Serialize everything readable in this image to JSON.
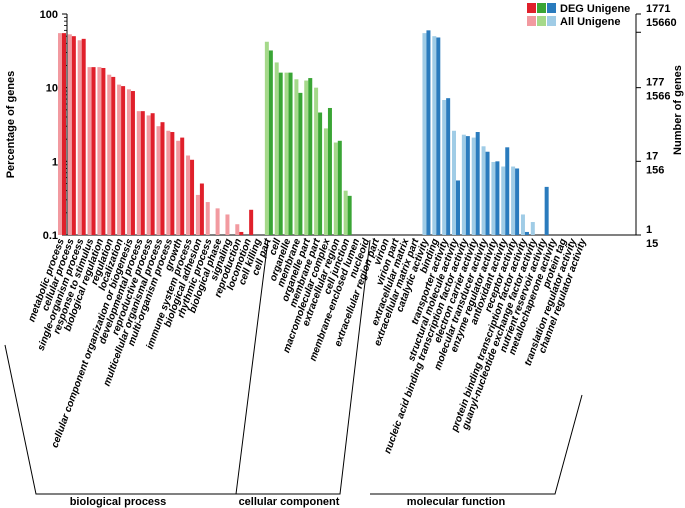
{
  "chart_data": {
    "type": "bar",
    "ylabel_left": "Percentage of genes",
    "ylabel_right": "Number of genes",
    "yscale": "log",
    "ylim": [
      0.1,
      100
    ],
    "left_ticks": [
      "100",
      "10",
      "1",
      "0.1"
    ],
    "right_ticks_deg": [
      "1771",
      "177",
      "17",
      "1"
    ],
    "right_ticks_all": [
      "15660",
      "1566",
      "156",
      "15"
    ],
    "legend": {
      "position": "top-right",
      "deg_label": "DEG Unigene",
      "all_label": "All Unigene"
    },
    "groups": [
      {
        "name": "biological process",
        "deg_color": "#e0202b",
        "all_color": "#f29aa0"
      },
      {
        "name": "cellular component",
        "deg_color": "#3aa535",
        "all_color": "#a5d98a"
      },
      {
        "name": "molecular function",
        "deg_color": "#2a7bbd",
        "all_color": "#a0cce6"
      }
    ],
    "categories": [
      {
        "label": "metabolic process",
        "group": 0,
        "all": 55,
        "deg": 55
      },
      {
        "label": "cellular process",
        "group": 0,
        "all": 53,
        "deg": 50
      },
      {
        "label": "single-organism process",
        "group": 0,
        "all": 44,
        "deg": 46
      },
      {
        "label": "response to stimulus",
        "group": 0,
        "all": 19,
        "deg": 19
      },
      {
        "label": "biological regulation",
        "group": 0,
        "all": 19,
        "deg": 18.5
      },
      {
        "label": "regulation",
        "group": 0,
        "all": 15,
        "deg": 14
      },
      {
        "label": "localization",
        "group": 0,
        "all": 11,
        "deg": 10.5
      },
      {
        "label": "cellular component organization or biogenesis",
        "group": 0,
        "all": 9.5,
        "deg": 9
      },
      {
        "label": "developmental process",
        "group": 0,
        "all": 4.8,
        "deg": 4.8
      },
      {
        "label": "reproductive process",
        "group": 0,
        "all": 4.2,
        "deg": 4.5
      },
      {
        "label": "multicellular organismal process",
        "group": 0,
        "all": 3.0,
        "deg": 3.4
      },
      {
        "label": "multi-organism process",
        "group": 0,
        "all": 2.6,
        "deg": 2.5
      },
      {
        "label": "growth",
        "group": 0,
        "all": 1.9,
        "deg": 2.1
      },
      {
        "label": "immune system process",
        "group": 0,
        "all": 1.2,
        "deg": 1.05
      },
      {
        "label": "biological adhesion",
        "group": 0,
        "all": 0.35,
        "deg": 0.5
      },
      {
        "label": "rhythmic process",
        "group": 0,
        "all": 0.28,
        "deg": null
      },
      {
        "label": "biological phase",
        "group": 0,
        "all": 0.23,
        "deg": null
      },
      {
        "label": "signaling",
        "group": 0,
        "all": 0.19,
        "deg": null
      },
      {
        "label": "reproduction",
        "group": 0,
        "all": 0.14,
        "deg": 0.11
      },
      {
        "label": "locomotion",
        "group": 0,
        "all": null,
        "deg": 0.22
      },
      {
        "label": "cell killing",
        "group": 0,
        "all": null,
        "deg": null
      },
      {
        "label": "cell part",
        "group": 1,
        "all": 42,
        "deg": 32
      },
      {
        "label": "cell",
        "group": 1,
        "all": 22,
        "deg": 16
      },
      {
        "label": "organelle",
        "group": 1,
        "all": 16,
        "deg": 16
      },
      {
        "label": "membrane",
        "group": 1,
        "all": 13,
        "deg": 8.5
      },
      {
        "label": "organelle part",
        "group": 1,
        "all": 12.5,
        "deg": 13.5
      },
      {
        "label": "membrane part",
        "group": 1,
        "all": 10,
        "deg": 4.6
      },
      {
        "label": "macromolecular complex",
        "group": 1,
        "all": 2.8,
        "deg": 5.3
      },
      {
        "label": "extracellular region",
        "group": 1,
        "all": 1.8,
        "deg": 1.9
      },
      {
        "label": "cell junction",
        "group": 1,
        "all": 0.4,
        "deg": 0.34
      },
      {
        "label": "membrane-enclosed lumen",
        "group": 1,
        "all": null,
        "deg": null
      },
      {
        "label": "nucleoid",
        "group": 1,
        "all": null,
        "deg": null
      },
      {
        "label": "extracellular region part",
        "group": 1,
        "all": null,
        "deg": null
      },
      {
        "label": "virion",
        "group": 1,
        "all": null,
        "deg": null
      },
      {
        "label": "virion part",
        "group": 1,
        "all": null,
        "deg": null
      },
      {
        "label": "extracellular matrix",
        "group": 1,
        "all": null,
        "deg": null
      },
      {
        "label": "extracellular matrix part",
        "group": 1,
        "all": null,
        "deg": null
      },
      {
        "label": "catalytic activity",
        "group": 2,
        "all": 55,
        "deg": 60
      },
      {
        "label": "binding",
        "group": 2,
        "all": 50,
        "deg": 48
      },
      {
        "label": "transporter activity",
        "group": 2,
        "all": 6.8,
        "deg": 7.2
      },
      {
        "label": "structural molecule activity",
        "group": 2,
        "all": 2.6,
        "deg": 0.55
      },
      {
        "label": "nucleic acid binding transcription factor activity",
        "group": 2,
        "all": 2.3,
        "deg": 2.2
      },
      {
        "label": "electron carrier activity",
        "group": 2,
        "all": 2.1,
        "deg": 2.5
      },
      {
        "label": "molecular transducer activity",
        "group": 2,
        "all": 1.6,
        "deg": 1.35
      },
      {
        "label": "enzyme regulator activity",
        "group": 2,
        "all": 0.98,
        "deg": 1.0
      },
      {
        "label": "antioxidant activity",
        "group": 2,
        "all": 0.85,
        "deg": 1.55
      },
      {
        "label": "receptor activity",
        "group": 2,
        "all": 0.85,
        "deg": 0.8
      },
      {
        "label": "protein binding transcription factor activity",
        "group": 2,
        "all": 0.19,
        "deg": 0.11
      },
      {
        "label": "guanyl-nucleotide exchange factor activity",
        "group": 2,
        "all": 0.15,
        "deg": null
      },
      {
        "label": "nutrient reservoir activity",
        "group": 2,
        "all": null,
        "deg": 0.45
      },
      {
        "label": "metallochaperone activity",
        "group": 2,
        "all": null,
        "deg": null
      },
      {
        "label": "protein tag",
        "group": 2,
        "all": null,
        "deg": null
      },
      {
        "label": "translation regulator activity",
        "group": 2,
        "all": null,
        "deg": null
      },
      {
        "label": "channel regulator activity",
        "group": 2,
        "all": null,
        "deg": null
      }
    ]
  }
}
